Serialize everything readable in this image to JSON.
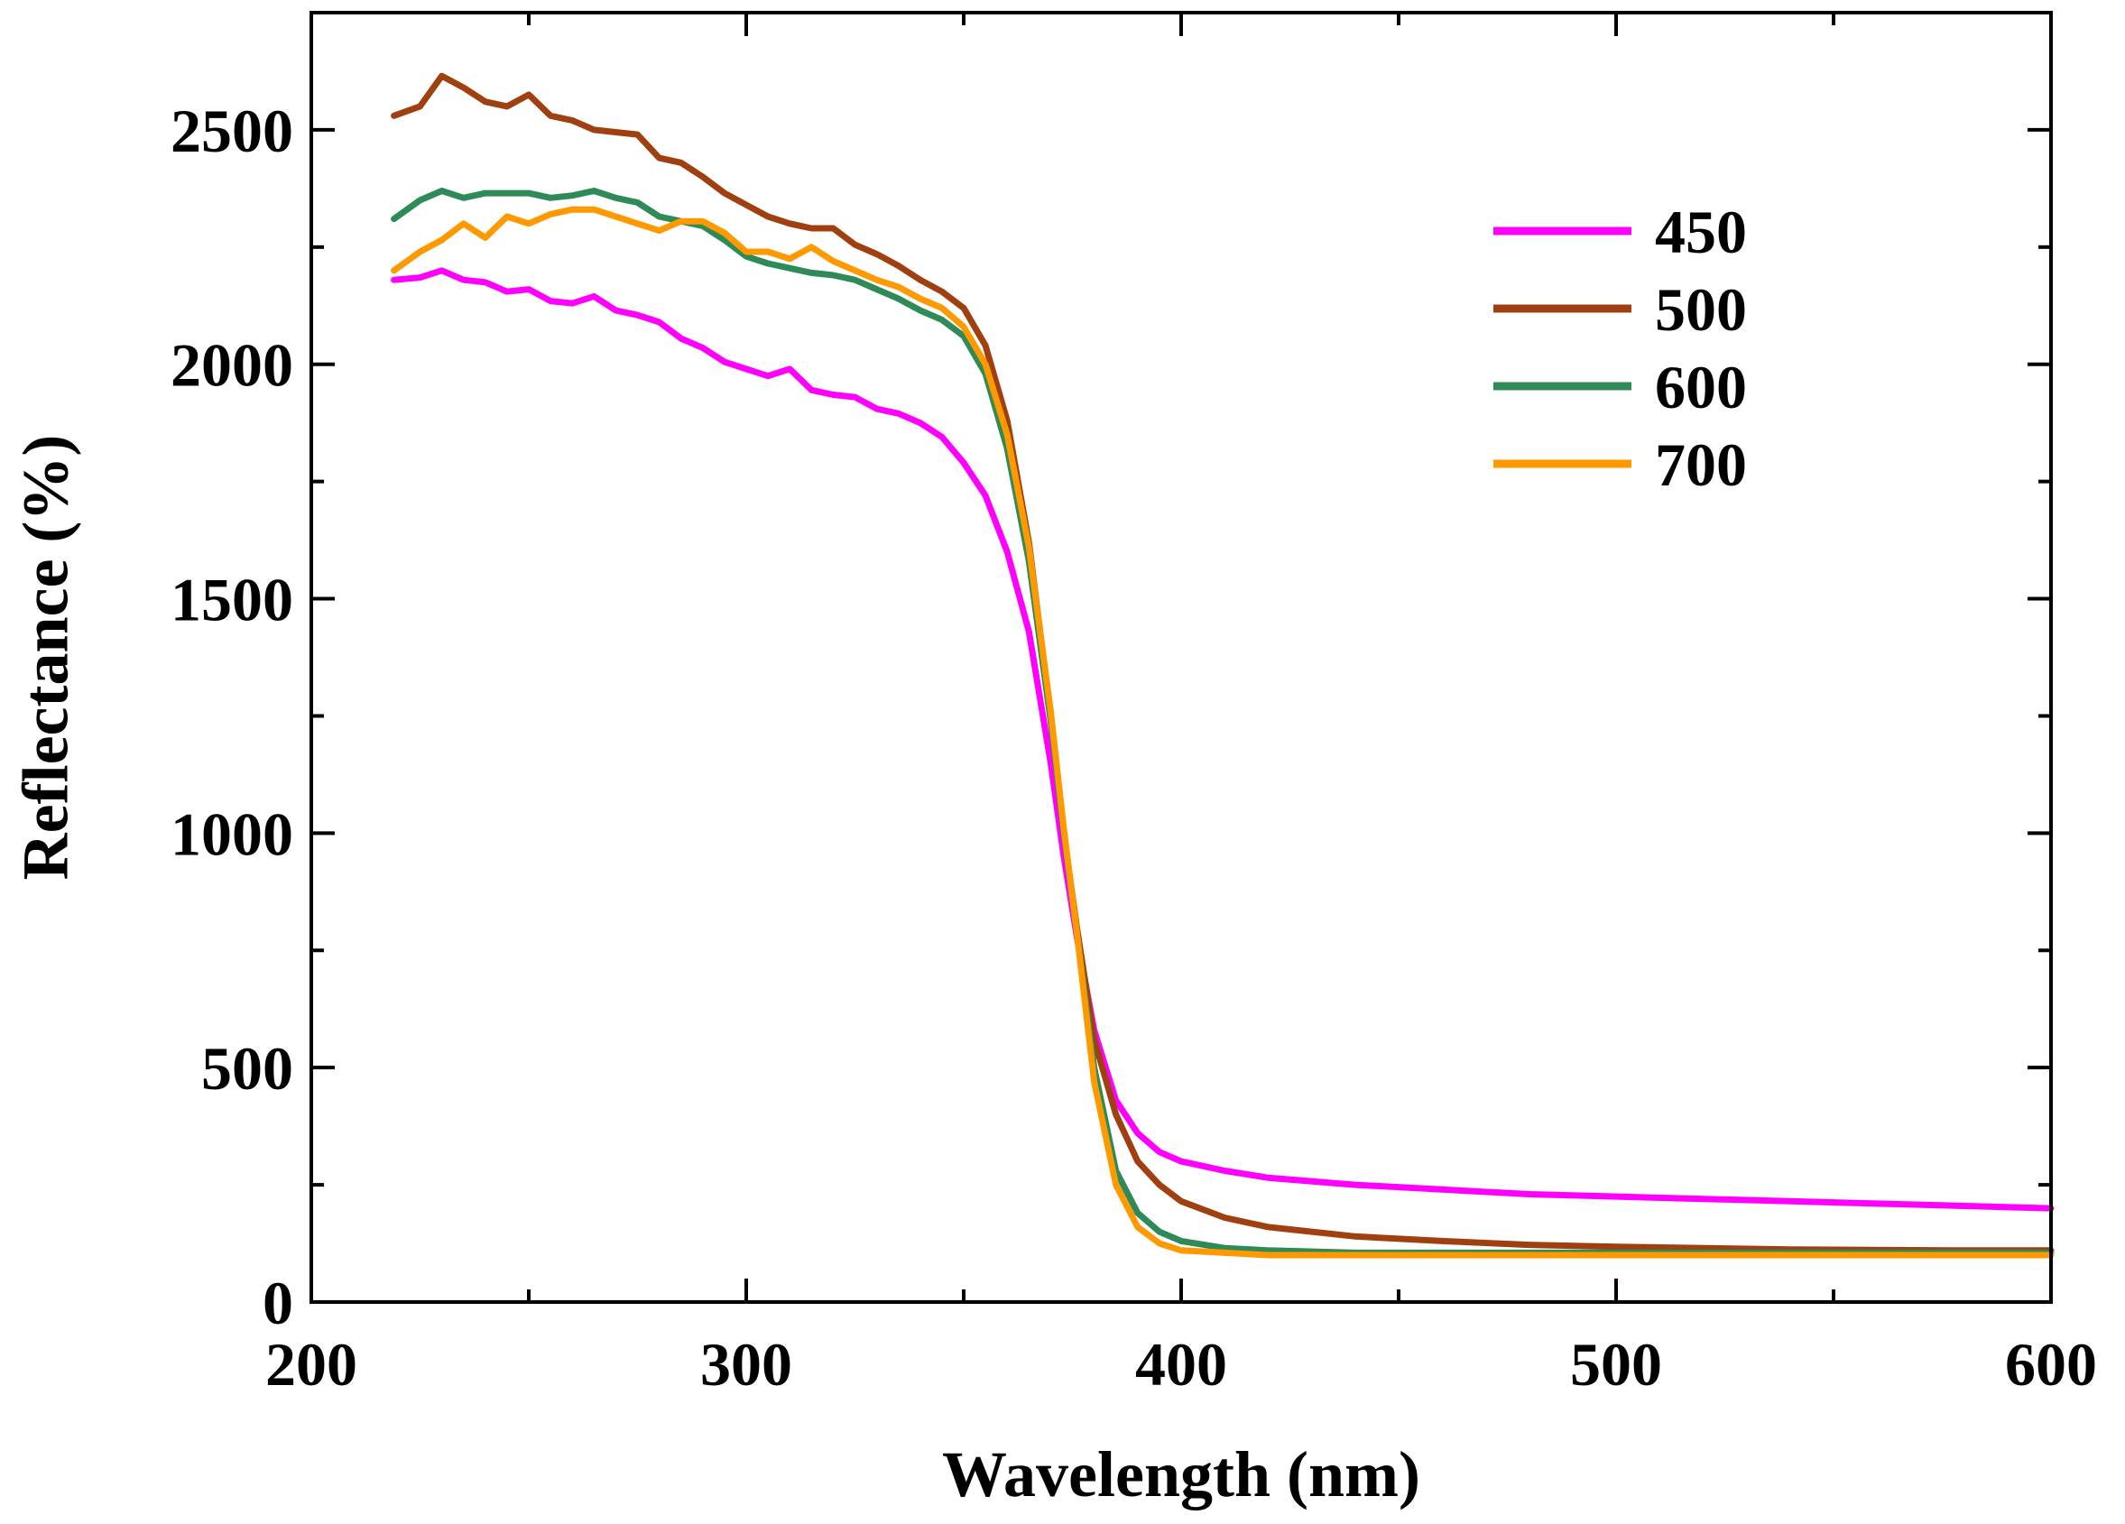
{
  "chart_data": {
    "type": "line",
    "title": "",
    "xlabel": "Wavelength (nm)",
    "ylabel": "Reflectance (%)",
    "xlim": [
      200,
      600
    ],
    "ylim": [
      0,
      2750
    ],
    "xticks": [
      200,
      300,
      400,
      500,
      600
    ],
    "yticks": [
      0,
      500,
      1000,
      1500,
      2000,
      2500
    ],
    "grid": false,
    "legend_position": "top-right",
    "series": [
      {
        "name": "450",
        "color": "#ff00ff",
        "x": [
          219,
          225,
          230,
          235,
          240,
          245,
          250,
          255,
          260,
          265,
          270,
          275,
          280,
          285,
          290,
          295,
          300,
          305,
          310,
          315,
          320,
          325,
          330,
          335,
          340,
          345,
          350,
          355,
          360,
          365,
          370,
          373,
          376,
          380,
          385,
          390,
          395,
          400,
          410,
          420,
          440,
          460,
          480,
          500,
          540,
          580,
          600
        ],
        "y": [
          2180,
          2185,
          2200,
          2180,
          2175,
          2155,
          2160,
          2135,
          2130,
          2145,
          2115,
          2105,
          2090,
          2055,
          2035,
          2005,
          1990,
          1975,
          1990,
          1945,
          1935,
          1930,
          1905,
          1895,
          1875,
          1845,
          1790,
          1720,
          1600,
          1430,
          1150,
          950,
          780,
          580,
          430,
          360,
          320,
          300,
          280,
          265,
          250,
          240,
          230,
          225,
          215,
          205,
          200
        ]
      },
      {
        "name": "500",
        "color": "#a04010",
        "x": [
          219,
          225,
          230,
          235,
          240,
          245,
          250,
          255,
          260,
          265,
          270,
          275,
          280,
          285,
          290,
          295,
          300,
          305,
          310,
          315,
          320,
          325,
          330,
          335,
          340,
          345,
          350,
          355,
          360,
          365,
          370,
          373,
          376,
          380,
          385,
          390,
          395,
          400,
          410,
          420,
          440,
          460,
          480,
          500,
          540,
          580,
          600
        ],
        "y": [
          2530,
          2550,
          2615,
          2590,
          2560,
          2550,
          2575,
          2530,
          2520,
          2500,
          2495,
          2490,
          2440,
          2430,
          2400,
          2365,
          2340,
          2315,
          2300,
          2290,
          2290,
          2255,
          2235,
          2210,
          2180,
          2155,
          2120,
          2040,
          1880,
          1620,
          1250,
          1000,
          800,
          560,
          400,
          300,
          250,
          215,
          180,
          160,
          140,
          130,
          122,
          118,
          112,
          110,
          110
        ]
      },
      {
        "name": "600",
        "color": "#2e8b57",
        "x": [
          219,
          225,
          230,
          235,
          240,
          245,
          250,
          255,
          260,
          265,
          270,
          275,
          280,
          285,
          290,
          295,
          300,
          305,
          310,
          315,
          320,
          325,
          330,
          335,
          340,
          345,
          350,
          355,
          360,
          365,
          370,
          373,
          376,
          380,
          385,
          390,
          395,
          400,
          410,
          420,
          440,
          460,
          480,
          500,
          540,
          580,
          600
        ],
        "y": [
          2310,
          2350,
          2370,
          2355,
          2365,
          2365,
          2365,
          2355,
          2360,
          2370,
          2355,
          2345,
          2315,
          2305,
          2295,
          2265,
          2230,
          2215,
          2205,
          2195,
          2190,
          2180,
          2160,
          2140,
          2115,
          2095,
          2060,
          1980,
          1820,
          1580,
          1240,
          1000,
          790,
          500,
          280,
          190,
          150,
          130,
          115,
          110,
          105,
          105,
          105,
          105,
          105,
          105,
          105
        ]
      },
      {
        "name": "700",
        "color": "#ff9900",
        "x": [
          219,
          225,
          230,
          235,
          240,
          245,
          250,
          255,
          260,
          265,
          270,
          275,
          280,
          285,
          290,
          295,
          300,
          305,
          310,
          315,
          320,
          325,
          330,
          335,
          340,
          345,
          350,
          355,
          360,
          365,
          370,
          373,
          376,
          380,
          385,
          390,
          395,
          400,
          410,
          420,
          440,
          460,
          480,
          500,
          540,
          580,
          600
        ],
        "y": [
          2200,
          2240,
          2265,
          2300,
          2270,
          2315,
          2300,
          2320,
          2330,
          2330,
          2315,
          2300,
          2285,
          2305,
          2305,
          2280,
          2240,
          2240,
          2225,
          2250,
          2220,
          2200,
          2180,
          2165,
          2140,
          2120,
          2080,
          2000,
          1850,
          1610,
          1260,
          1010,
          790,
          470,
          250,
          160,
          125,
          110,
          105,
          100,
          100,
          100,
          100,
          100,
          100,
          100,
          100
        ]
      }
    ]
  }
}
